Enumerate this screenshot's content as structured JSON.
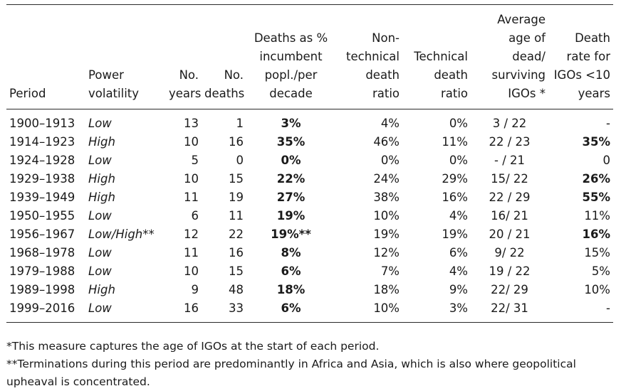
{
  "table": {
    "columns": [
      "Period",
      "Power volatility",
      "No. years",
      "No. deaths",
      "Deaths as % incumbent popl./per decade",
      "Non-technical death ratio",
      "Technical death ratio",
      "Average age of dead/ surviving IGOs *",
      "Death rate for IGOs <10 years"
    ],
    "rows": [
      {
        "period": "1900–1913",
        "volatility": "Low",
        "years": "13",
        "deaths": "1",
        "deaths_pct": "3%",
        "nontech": "4%",
        "tech": "0%",
        "avg_age": "3 / 22",
        "death_rate": "-",
        "death_rate_bold": false
      },
      {
        "period": "1914–1923",
        "volatility": "High",
        "years": "10",
        "deaths": "16",
        "deaths_pct": "35%",
        "nontech": "46%",
        "tech": "11%",
        "avg_age": "22 / 23",
        "death_rate": "35%",
        "death_rate_bold": true
      },
      {
        "period": "1924–1928",
        "volatility": "Low",
        "years": "5",
        "deaths": "0",
        "deaths_pct": "0%",
        "nontech": "0%",
        "tech": "0%",
        "avg_age": "- / 21",
        "death_rate": "0",
        "death_rate_bold": false
      },
      {
        "period": "1929–1938",
        "volatility": "High",
        "years": "10",
        "deaths": "15",
        "deaths_pct": "22%",
        "nontech": "24%",
        "tech": "29%",
        "avg_age": "15/ 22",
        "death_rate": "26%",
        "death_rate_bold": true
      },
      {
        "period": "1939–1949",
        "volatility": "High",
        "years": "11",
        "deaths": "19",
        "deaths_pct": "27%",
        "nontech": "38%",
        "tech": "16%",
        "avg_age": "22 / 29",
        "death_rate": "55%",
        "death_rate_bold": true
      },
      {
        "period": "1950–1955",
        "volatility": "Low",
        "years": "6",
        "deaths": "11",
        "deaths_pct": "19%",
        "nontech": "10%",
        "tech": "4%",
        "avg_age": "16/ 21",
        "death_rate": "11%",
        "death_rate_bold": false
      },
      {
        "period": "1956–1967",
        "volatility": "Low/High**",
        "years": "12",
        "deaths": "22",
        "deaths_pct": "19%**",
        "nontech": "19%",
        "tech": "19%",
        "avg_age": "20 / 21",
        "death_rate": "16%",
        "death_rate_bold": true
      },
      {
        "period": "1968–1978",
        "volatility": "Low",
        "years": "11",
        "deaths": "16",
        "deaths_pct": "8%",
        "nontech": "12%",
        "tech": "6%",
        "avg_age": "9/ 22",
        "death_rate": "15%",
        "death_rate_bold": false
      },
      {
        "period": "1979–1988",
        "volatility": "Low",
        "years": "10",
        "deaths": "15",
        "deaths_pct": "6%",
        "nontech": "7%",
        "tech": "4%",
        "avg_age": "19 / 22",
        "death_rate": "5%",
        "death_rate_bold": false
      },
      {
        "period": "1989–1998",
        "volatility": "High",
        "years": "9",
        "deaths": "48",
        "deaths_pct": "18%",
        "nontech": "18%",
        "tech": "9%",
        "avg_age": "22/ 29",
        "death_rate": "10%",
        "death_rate_bold": false
      },
      {
        "period": "1999–2016",
        "volatility": "Low",
        "years": "16",
        "deaths": "33",
        "deaths_pct": "6%",
        "nontech": "10%",
        "tech": "3%",
        "avg_age": "22/ 31",
        "death_rate": "-",
        "death_rate_bold": false
      }
    ]
  },
  "notes": [
    "*This measure captures the age of IGOs at the start of each period.",
    "**Terminations during this period are predominantly in Africa and Asia, which is also where geopolitical upheaval is concentrated."
  ]
}
